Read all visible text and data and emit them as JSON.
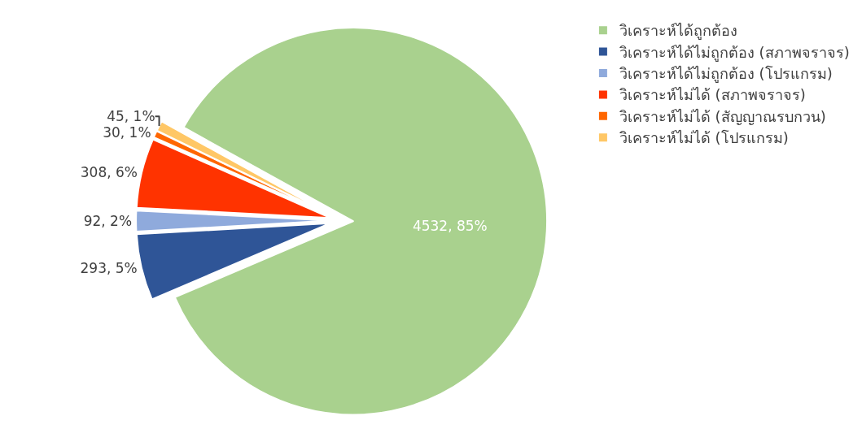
{
  "chart_data": {
    "type": "pie",
    "categories": [
      "วิเคราะห์ได้ถูกต้อง",
      "วิเคราะห์ได้ไม่ถูกต้อง (สภาพจราจร)",
      "วิเคราะห์ได้ไม่ถูกต้อง (โปรแกรม)",
      "วิเคราะห์ไม่ได้ (สภาพจราจร)",
      "วิเคราะห์ไม่ได้ (สัญญาณรบกวน)",
      "วิเคราะห์ไม่ได้ (โปรแกรม)"
    ],
    "values": [
      4532,
      293,
      92,
      308,
      30,
      45
    ],
    "value_labels": [
      "4532, 85%",
      "293, 5%",
      "92, 2%",
      "308, 6%",
      "30, 1%",
      "45, 1%"
    ],
    "colors": [
      "#a9d18e",
      "#2f5597",
      "#8faadc",
      "#ff3300",
      "#ff6600",
      "#ffc766"
    ],
    "legend": "right"
  }
}
